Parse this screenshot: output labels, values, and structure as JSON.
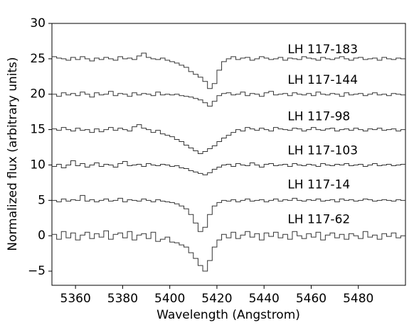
{
  "chart_data": {
    "type": "line",
    "step": true,
    "xlabel": "Wavelength (Angstrom)",
    "ylabel": "Normalized flux (arbitrary units)",
    "xlim": [
      5350,
      5500
    ],
    "ylim": [
      -7,
      30
    ],
    "xticks": [
      5360,
      5380,
      5400,
      5420,
      5440,
      5460,
      5480
    ],
    "yticks": [
      {
        "value": -5,
        "label": "−5"
      },
      0,
      5,
      10,
      15,
      20,
      25,
      30
    ],
    "label_x": 5450,
    "x": [
      5350,
      5352,
      5354,
      5356,
      5358,
      5360,
      5362,
      5364,
      5366,
      5368,
      5370,
      5372,
      5374,
      5376,
      5378,
      5380,
      5382,
      5384,
      5386,
      5388,
      5390,
      5392,
      5394,
      5396,
      5398,
      5400,
      5402,
      5404,
      5406,
      5408,
      5410,
      5412,
      5414,
      5416,
      5418,
      5420,
      5422,
      5424,
      5426,
      5428,
      5430,
      5432,
      5434,
      5436,
      5438,
      5440,
      5442,
      5444,
      5446,
      5448,
      5450,
      5452,
      5454,
      5456,
      5458,
      5460,
      5462,
      5464,
      5466,
      5468,
      5470,
      5472,
      5474,
      5476,
      5478,
      5480,
      5482,
      5484,
      5486,
      5488,
      5490,
      5492,
      5494,
      5496,
      5498
    ],
    "series": [
      {
        "name": "LH 117-183",
        "color": "#333333",
        "label_y": 26.3,
        "values": [
          25.3,
          25.1,
          25.0,
          24.8,
          25.2,
          24.9,
          25.3,
          25.0,
          24.7,
          25.1,
          24.9,
          25.2,
          25.0,
          24.8,
          25.3,
          25.0,
          25.1,
          24.9,
          25.4,
          25.8,
          25.2,
          25.0,
          24.9,
          25.1,
          24.8,
          24.6,
          24.4,
          24.1,
          23.8,
          23.2,
          22.8,
          22.4,
          21.8,
          20.8,
          21.5,
          23.4,
          24.6,
          25.0,
          25.3,
          24.9,
          25.1,
          25.2,
          24.8,
          25.0,
          25.3,
          25.1,
          24.9,
          25.0,
          25.2,
          24.8,
          25.1,
          25.0,
          24.9,
          25.3,
          25.1,
          25.0,
          24.8,
          25.2,
          25.0,
          24.9,
          25.1,
          25.3,
          25.0,
          24.8,
          25.1,
          25.2,
          24.9,
          25.0,
          25.1,
          24.8,
          25.2,
          25.0,
          24.9,
          25.1,
          25.0
        ]
      },
      {
        "name": "LH 117-144",
        "color": "#333333",
        "label_y": 22.0,
        "values": [
          20.0,
          19.7,
          20.2,
          19.9,
          20.1,
          19.8,
          20.3,
          20.0,
          19.6,
          20.2,
          19.9,
          20.0,
          20.4,
          19.8,
          20.1,
          20.0,
          19.7,
          20.2,
          19.9,
          20.1,
          20.0,
          19.8,
          20.3,
          19.9,
          20.0,
          19.9,
          20.0,
          19.8,
          19.7,
          19.6,
          19.4,
          19.2,
          18.8,
          18.3,
          19.0,
          19.8,
          20.1,
          20.2,
          19.9,
          20.0,
          20.3,
          19.8,
          20.1,
          20.0,
          19.7,
          20.2,
          20.4,
          19.9,
          20.0,
          20.1,
          19.8,
          20.2,
          20.0,
          19.9,
          20.1,
          19.8,
          20.3,
          20.0,
          19.9,
          20.1,
          20.0,
          19.7,
          20.2,
          19.9,
          20.0,
          20.1,
          19.8,
          20.0,
          20.2,
          19.9,
          20.0,
          19.8,
          20.1,
          20.0,
          19.9
        ]
      },
      {
        "name": "LH 117-98",
        "color": "#333333",
        "label_y": 16.8,
        "values": [
          15.1,
          14.9,
          15.3,
          15.0,
          14.8,
          15.2,
          14.9,
          15.0,
          14.6,
          15.1,
          14.7,
          15.0,
          15.3,
          14.9,
          15.2,
          15.0,
          14.8,
          15.4,
          15.7,
          15.2,
          15.0,
          14.6,
          14.9,
          14.4,
          14.2,
          14.0,
          13.6,
          13.3,
          12.8,
          12.4,
          12.0,
          11.6,
          11.9,
          12.3,
          12.7,
          13.3,
          13.8,
          14.2,
          14.6,
          15.0,
          14.8,
          15.3,
          15.1,
          14.9,
          15.2,
          15.0,
          14.8,
          15.3,
          15.1,
          15.0,
          14.9,
          15.2,
          15.1,
          14.8,
          15.0,
          15.3,
          15.0,
          14.9,
          15.1,
          15.2,
          14.8,
          15.0,
          15.1,
          14.9,
          15.2,
          15.0,
          14.8,
          15.1,
          15.0,
          15.2,
          14.9,
          15.0,
          15.1,
          14.8,
          15.0
        ]
      },
      {
        "name": "LH 117-103",
        "color": "#333333",
        "label_y": 12.0,
        "values": [
          9.8,
          10.1,
          9.6,
          10.0,
          10.6,
          9.9,
          10.2,
          9.7,
          10.0,
          10.3,
          9.8,
          10.1,
          10.0,
          9.7,
          10.2,
          10.5,
          9.9,
          10.0,
          10.1,
          9.8,
          10.2,
          10.0,
          9.9,
          10.1,
          10.0,
          9.8,
          9.9,
          9.6,
          9.5,
          9.2,
          9.0,
          8.8,
          8.6,
          8.9,
          9.4,
          9.7,
          10.0,
          10.1,
          9.8,
          10.2,
          10.0,
          9.9,
          10.3,
          10.0,
          9.7,
          10.1,
          10.2,
          9.9,
          10.0,
          10.1,
          9.8,
          10.2,
          10.0,
          9.9,
          10.1,
          10.0,
          9.8,
          10.2,
          10.0,
          9.9,
          10.1,
          10.0,
          10.2,
          9.9,
          10.0,
          10.1,
          9.8,
          10.0,
          10.2,
          9.9,
          10.0,
          10.1,
          9.9,
          10.0,
          10.1
        ]
      },
      {
        "name": "LH 117-14",
        "color": "#333333",
        "label_y": 7.2,
        "values": [
          5.0,
          4.8,
          5.2,
          4.9,
          5.1,
          5.0,
          5.7,
          4.9,
          5.1,
          4.8,
          5.0,
          5.2,
          4.9,
          5.0,
          5.3,
          4.8,
          5.1,
          5.0,
          4.9,
          5.2,
          5.0,
          4.8,
          5.1,
          4.9,
          4.8,
          4.7,
          4.5,
          4.2,
          3.8,
          3.0,
          1.8,
          0.6,
          1.2,
          3.0,
          4.2,
          4.7,
          5.0,
          4.9,
          5.1,
          4.8,
          5.0,
          5.2,
          4.9,
          5.0,
          5.1,
          4.8,
          5.0,
          5.2,
          4.9,
          5.1,
          5.0,
          5.3,
          5.0,
          4.9,
          5.1,
          5.0,
          5.2,
          4.9,
          5.0,
          5.1,
          4.8,
          5.2,
          5.0,
          5.1,
          4.9,
          5.0,
          5.2,
          5.1,
          4.9,
          5.0,
          5.1,
          5.0,
          4.9,
          5.1,
          5.0
        ]
      },
      {
        "name": "LH 117-62",
        "color": "#333333",
        "label_y": 2.3,
        "values": [
          0.2,
          -0.5,
          0.6,
          -0.3,
          0.4,
          -0.6,
          0.1,
          0.5,
          -0.4,
          0.3,
          -0.2,
          0.7,
          -0.5,
          0.2,
          0.4,
          -0.3,
          0.6,
          -0.6,
          0.1,
          0.3,
          -0.4,
          0.5,
          -0.8,
          -0.5,
          -0.2,
          -0.9,
          -1.0,
          -1.3,
          -1.6,
          -2.4,
          -3.2,
          -4.2,
          -5.0,
          -3.5,
          -1.6,
          -0.6,
          0.2,
          -0.3,
          0.5,
          -0.4,
          0.1,
          0.6,
          -0.2,
          0.3,
          -0.6,
          0.4,
          -0.1,
          0.5,
          -0.3,
          0.2,
          -0.5,
          0.6,
          0.0,
          -0.4,
          0.3,
          -0.2,
          0.5,
          -0.6,
          0.1,
          0.4,
          -0.3,
          0.2,
          -0.5,
          0.3,
          0.0,
          -0.4,
          0.6,
          -0.2,
          0.1,
          -0.5,
          0.3,
          -0.1,
          0.4,
          -0.3,
          0.0
        ]
      }
    ]
  }
}
